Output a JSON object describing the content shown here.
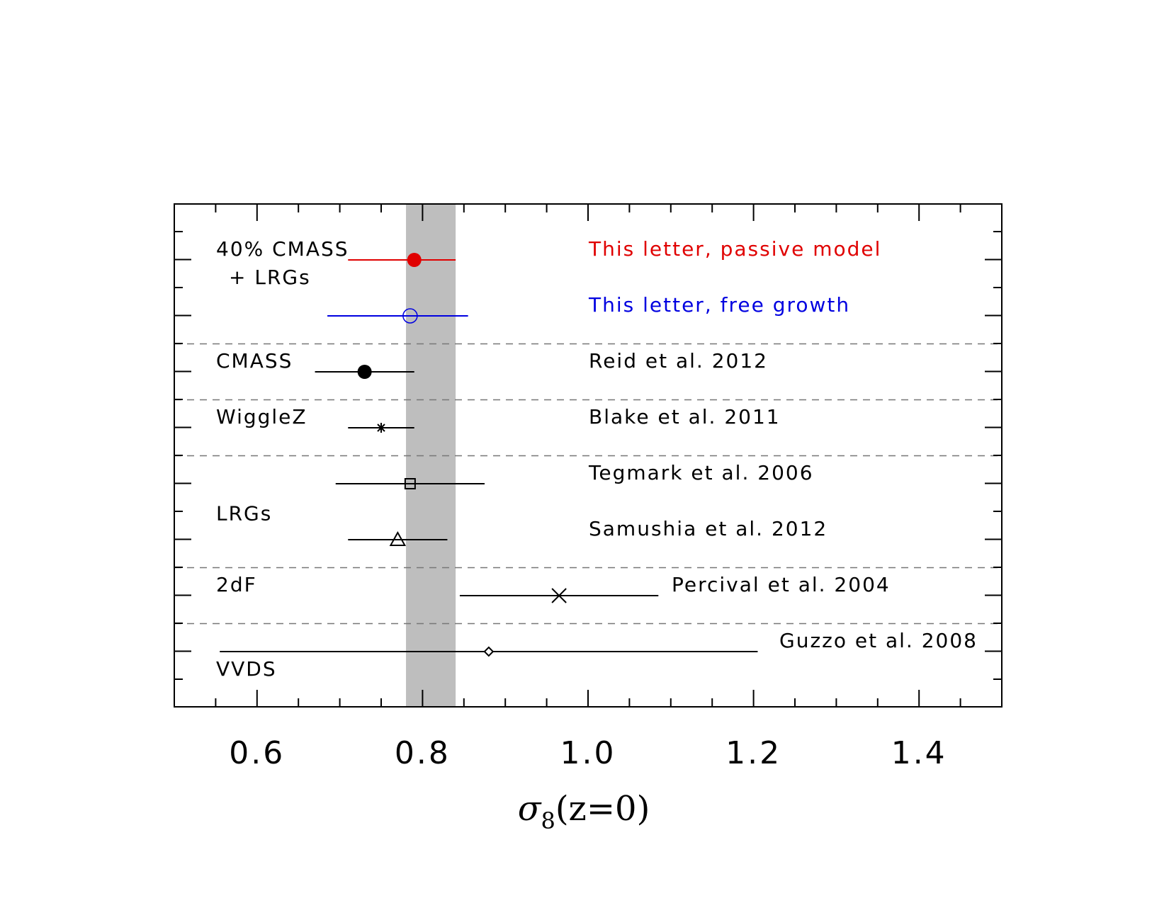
{
  "chart_data": {
    "type": "scatter",
    "xlabel": "σ8(z=0)",
    "xlabel_symbol": "σ",
    "xlabel_subscript": "8",
    "xlabel_rest": "(z=0)",
    "xlim": [
      0.5,
      1.5
    ],
    "xticks": [
      "0.6",
      "0.8",
      "1.0",
      "1.2",
      "1.4"
    ],
    "grid": false,
    "band": {
      "from": 0.78,
      "to": 0.84,
      "color": "#bebebe"
    },
    "points": [
      {
        "y": 1,
        "x": 0.79,
        "lo": 0.71,
        "hi": 0.84,
        "marker": "filled-circle",
        "color": "#e00000",
        "label": "This letter, passive model"
      },
      {
        "y": 2,
        "x": 0.785,
        "lo": 0.685,
        "hi": 0.855,
        "marker": "open-circle",
        "color": "#0000e0",
        "label": "This letter, free growth"
      },
      {
        "y": 3,
        "x": 0.73,
        "lo": 0.67,
        "hi": 0.79,
        "marker": "filled-circle",
        "color": "#000000",
        "label": "Reid et al. 2012"
      },
      {
        "y": 4,
        "x": 0.75,
        "lo": 0.71,
        "hi": 0.79,
        "marker": "asterisk",
        "color": "#000000",
        "label": "Blake et al. 2011"
      },
      {
        "y": 5,
        "x": 0.785,
        "lo": 0.695,
        "hi": 0.875,
        "marker": "square",
        "color": "#000000",
        "label": "Tegmark et al. 2006"
      },
      {
        "y": 6,
        "x": 0.77,
        "lo": 0.71,
        "hi": 0.83,
        "marker": "triangle",
        "color": "#000000",
        "label": "Samushia et al. 2012"
      },
      {
        "y": 7,
        "x": 0.965,
        "lo": 0.845,
        "hi": 1.085,
        "marker": "cross",
        "color": "#000000",
        "label": "Percival et al. 2004"
      },
      {
        "y": 8,
        "x": 0.88,
        "lo": 0.555,
        "hi": 1.205,
        "marker": "diamond",
        "color": "#000000",
        "label": "Guzzo et al. 2008"
      }
    ],
    "groups": [
      {
        "lines": [
          "40% CMASS",
          "+ LRGs"
        ],
        "rows": [
          1,
          2
        ]
      },
      {
        "lines": [
          "CMASS"
        ],
        "rows": [
          3
        ]
      },
      {
        "lines": [
          "WiggleZ"
        ],
        "rows": [
          4
        ]
      },
      {
        "lines": [
          "LRGs"
        ],
        "rows": [
          5,
          6
        ]
      },
      {
        "lines": [
          "2dF"
        ],
        "rows": [
          7
        ]
      },
      {
        "lines": [
          "VVDS"
        ],
        "rows": [
          8
        ]
      }
    ],
    "separators_after_rows": [
      2,
      3,
      4,
      6,
      7
    ]
  }
}
